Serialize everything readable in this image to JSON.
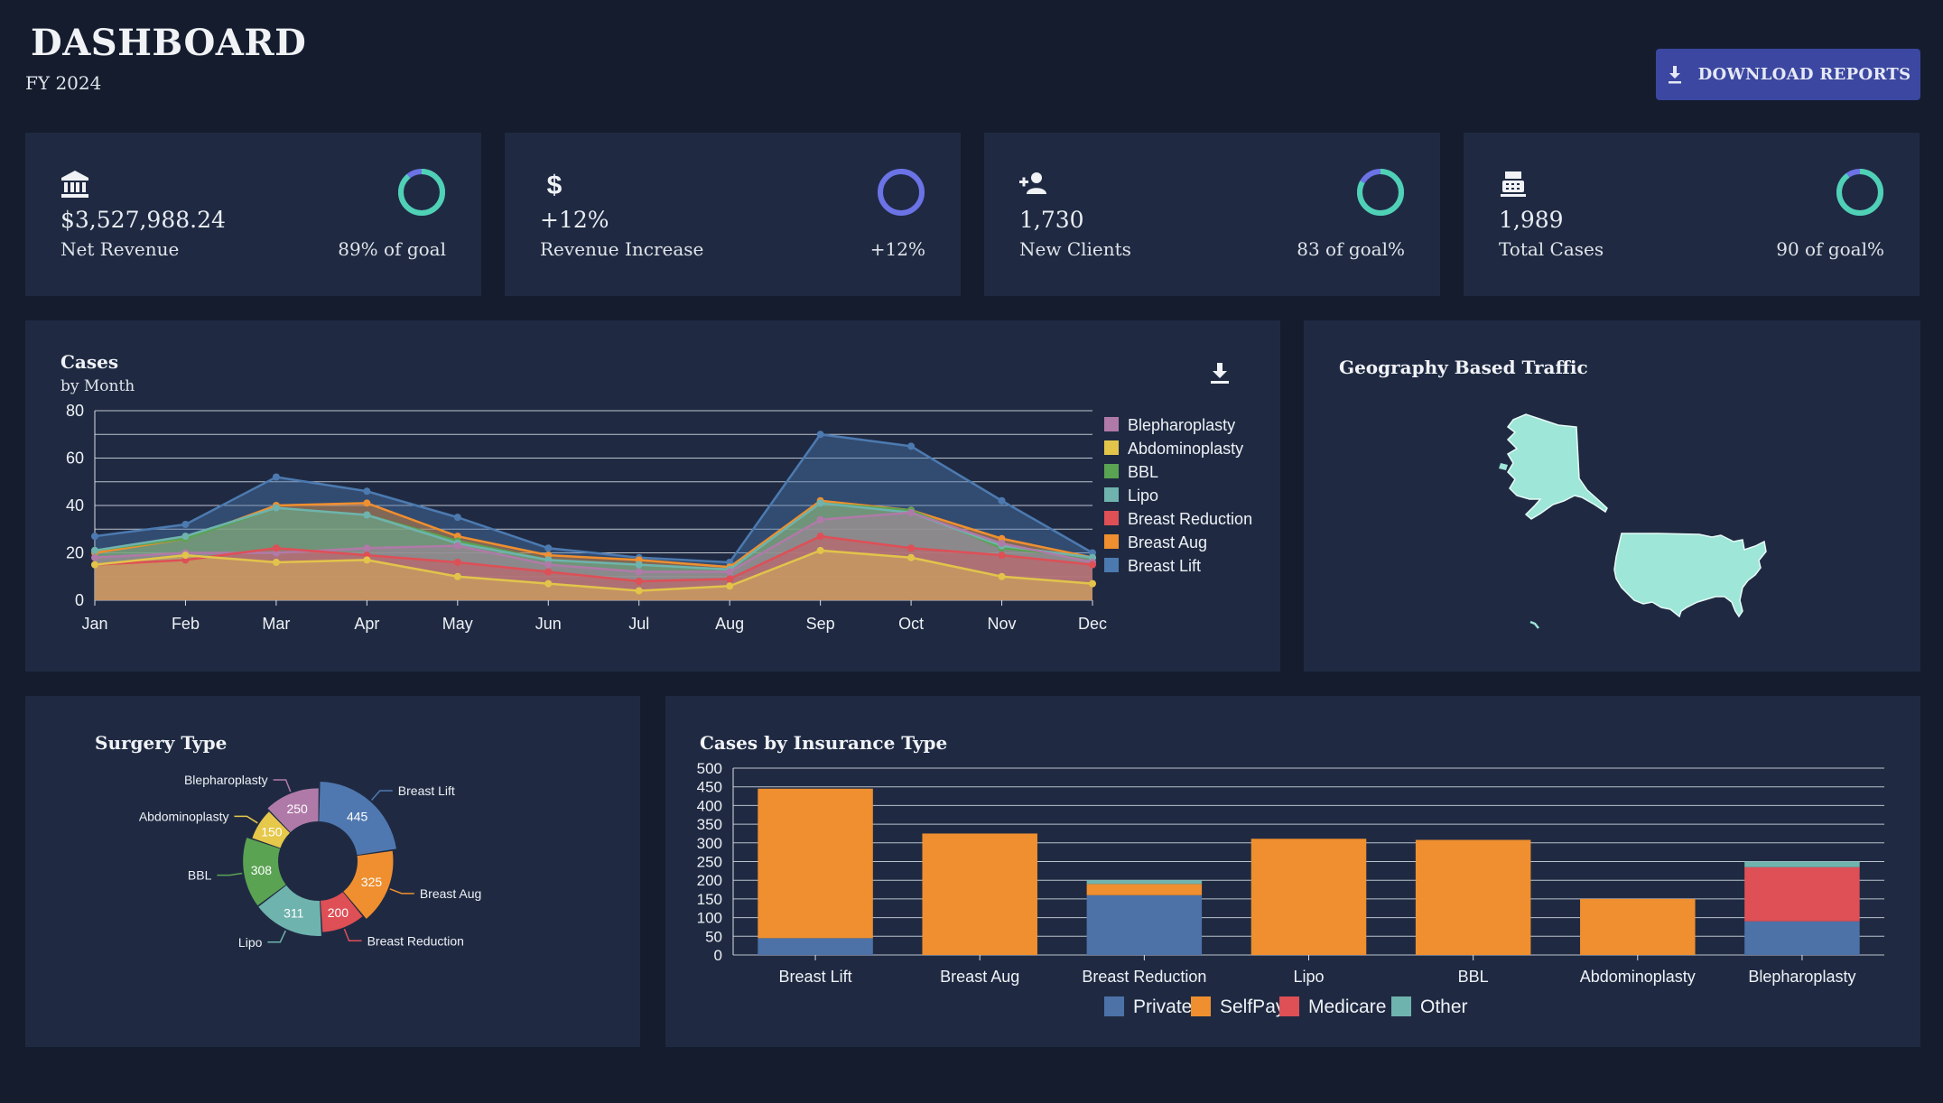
{
  "header": {
    "title": "DASHBOARD",
    "subtitle": "FY 2024",
    "download_label": "DOWNLOAD REPORTS"
  },
  "kpis": [
    {
      "icon": "bank-icon",
      "value": "$3,527,988.24",
      "label": "Net Revenue",
      "goal": "89% of goal",
      "fraction": 0.89,
      "color": "#4fd1b5"
    },
    {
      "icon": "dollar-icon",
      "value": "+12%",
      "label": "Revenue Increase",
      "goal": "+12%",
      "fraction": 0.12,
      "color": "#6b73e6"
    },
    {
      "icon": "add-user-icon",
      "value": "1,730",
      "label": "New Clients",
      "goal": "83 of goal%",
      "fraction": 0.83,
      "color": "#4fd1b5"
    },
    {
      "icon": "register-icon",
      "value": "1,989",
      "label": "Total Cases",
      "goal": "90 of goal%",
      "fraction": 0.9,
      "color": "#4fd1b5"
    }
  ],
  "cases_panel": {
    "title": "Cases",
    "subtitle": "by Month"
  },
  "geo_panel": {
    "title": "Geography Based Traffic",
    "fill": "#9de6d8"
  },
  "surgery_panel": {
    "title": "Surgery Type"
  },
  "insurance_panel": {
    "title": "Cases by Insurance Type"
  },
  "chart_data": [
    {
      "type": "area",
      "title": "Cases",
      "subtitle": "by Month",
      "x": [
        "Jan",
        "Feb",
        "Mar",
        "Apr",
        "May",
        "Jun",
        "Jul",
        "Aug",
        "Sep",
        "Oct",
        "Nov",
        "Dec"
      ],
      "ylim": [
        0,
        80
      ],
      "yticks": [
        0,
        20,
        40,
        60,
        80
      ],
      "series": [
        {
          "name": "Blepharoplasty",
          "color": "#b07aa8",
          "values": [
            18,
            20,
            20,
            22,
            23,
            15,
            12,
            12,
            34,
            37,
            24,
            16
          ]
        },
        {
          "name": "Abdominoplasty",
          "color": "#e2c44a",
          "values": [
            15,
            19,
            16,
            17,
            10,
            7,
            4,
            6,
            21,
            18,
            10,
            7
          ]
        },
        {
          "name": "BBL",
          "color": "#5aa352",
          "values": [
            21,
            26,
            39,
            36,
            25,
            17,
            15,
            13,
            41,
            38,
            22,
            18
          ]
        },
        {
          "name": "Lipo",
          "color": "#6fb3ae",
          "values": [
            21,
            27,
            39,
            36,
            24,
            17,
            15,
            13,
            41,
            37,
            23,
            18
          ]
        },
        {
          "name": "Breast Reduction",
          "color": "#de4f56",
          "values": [
            15,
            17,
            22,
            19,
            16,
            12,
            8,
            9,
            27,
            22,
            19,
            15
          ]
        },
        {
          "name": "Breast Aug",
          "color": "#ef8f2f",
          "values": [
            20,
            26,
            40,
            41,
            27,
            19,
            17,
            14,
            42,
            38,
            26,
            18
          ]
        },
        {
          "name": "Breast Lift",
          "color": "#4c7ab0",
          "values": [
            27,
            32,
            52,
            46,
            35,
            22,
            18,
            16,
            70,
            65,
            42,
            20
          ]
        }
      ]
    },
    {
      "type": "pie",
      "title": "Surgery Type",
      "slices": [
        {
          "label": "Breast Lift",
          "value": 445,
          "color": "#4f78b0"
        },
        {
          "label": "Breast Aug",
          "value": 325,
          "color": "#ef8f2f"
        },
        {
          "label": "Breast Reduction",
          "value": 200,
          "color": "#de4f56"
        },
        {
          "label": "Lipo",
          "value": 311,
          "color": "#6fb3ae"
        },
        {
          "label": "BBL",
          "value": 308,
          "color": "#5aa352"
        },
        {
          "label": "Abdominoplasty",
          "value": 150,
          "color": "#e6c84a"
        },
        {
          "label": "Blepharoplasty",
          "value": 250,
          "color": "#b07aa8"
        }
      ]
    },
    {
      "type": "bar",
      "stacked": true,
      "title": "Cases by Insurance Type",
      "categories": [
        "Breast Lift",
        "Breast Aug",
        "Breast Reduction",
        "Lipo",
        "BBL",
        "Abdominoplasty",
        "Blepharoplasty"
      ],
      "ylim": [
        0,
        500
      ],
      "yticks": [
        0,
        50,
        100,
        150,
        200,
        250,
        300,
        350,
        400,
        450,
        500
      ],
      "series": [
        {
          "name": "Private",
          "color": "#4c72a8",
          "values": [
            45,
            0,
            160,
            0,
            0,
            0,
            90
          ]
        },
        {
          "name": "SelfPay",
          "color": "#ef8f2f",
          "values": [
            400,
            325,
            30,
            311,
            308,
            150,
            0
          ]
        },
        {
          "name": "Medicare",
          "color": "#de4f56",
          "values": [
            0,
            0,
            0,
            0,
            0,
            0,
            145
          ]
        },
        {
          "name": "Other",
          "color": "#6fb3ae",
          "values": [
            0,
            0,
            10,
            0,
            0,
            0,
            15
          ]
        }
      ]
    }
  ]
}
